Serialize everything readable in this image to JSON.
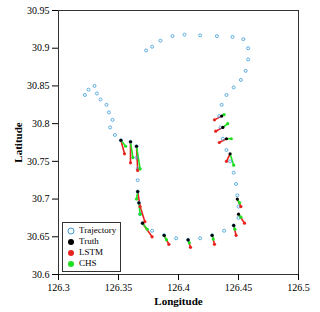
{
  "chart_data": {
    "type": "scatter",
    "xlabel": "Longitude",
    "ylabel": "Latitude",
    "xlim": [
      126.3,
      126.5
    ],
    "xticks": [
      126.3,
      126.35,
      126.4,
      126.45,
      126.5
    ],
    "ylim": [
      30.6,
      30.95
    ],
    "yticks": [
      30.6,
      30.65,
      30.7,
      30.75,
      30.8,
      30.85,
      30.9,
      30.95
    ],
    "grid": false,
    "legend": "lower left",
    "series": [
      {
        "name": "Trajectory",
        "color": "#3a9ad9",
        "marker": "o",
        "line_style": "none",
        "x": [
          126.322,
          126.325,
          126.33,
          126.332,
          126.335,
          126.34,
          126.342,
          126.345,
          126.343,
          126.347,
          126.352,
          126.36,
          126.365,
          126.365,
          126.366,
          126.366,
          126.366,
          126.367,
          126.368,
          126.37,
          126.378,
          126.388,
          126.398,
          126.408,
          126.418,
          126.428,
          126.438,
          126.446,
          126.45,
          126.45,
          126.449,
          126.448,
          126.446,
          126.443,
          126.44,
          126.437,
          126.435,
          126.434,
          126.436,
          126.44,
          126.446,
          126.452,
          126.456,
          126.458,
          126.458,
          126.454,
          126.445,
          126.432,
          126.418,
          126.405,
          126.395,
          126.385,
          126.378,
          126.373
        ],
        "y": [
          30.838,
          30.845,
          30.85,
          30.84,
          30.832,
          30.825,
          30.815,
          30.805,
          30.795,
          30.785,
          30.778,
          30.776,
          30.77,
          30.755,
          30.74,
          30.725,
          30.71,
          30.695,
          30.68,
          30.668,
          30.658,
          30.652,
          30.648,
          30.646,
          30.648,
          30.652,
          30.658,
          30.665,
          30.675,
          30.69,
          30.705,
          30.72,
          30.735,
          30.75,
          30.765,
          30.78,
          30.795,
          30.81,
          30.825,
          30.838,
          30.848,
          30.858,
          30.87,
          30.885,
          30.9,
          30.912,
          30.915,
          30.916,
          30.917,
          30.918,
          30.916,
          30.91,
          30.902,
          30.897
        ]
      },
      {
        "name": "Truth",
        "color": "#000000",
        "marker": ".",
        "line_style": "none",
        "x": [
          126.352,
          126.36,
          126.365,
          126.436,
          126.437,
          126.44,
          126.443,
          126.366,
          126.367,
          126.37,
          126.388,
          126.408,
          126.428,
          126.446,
          126.45,
          126.449
        ],
        "y": [
          30.778,
          30.776,
          30.77,
          30.81,
          30.795,
          30.78,
          30.76,
          30.71,
          30.695,
          30.668,
          30.652,
          30.646,
          30.652,
          30.665,
          30.68,
          30.7
        ]
      },
      {
        "name": "LSTM",
        "color": "#e8231f",
        "marker": ".",
        "line_style": "solid",
        "x": [
          126.355,
          126.36,
          126.366,
          126.43,
          126.431,
          126.434,
          126.44,
          126.368,
          126.372,
          126.378,
          126.392,
          126.41,
          126.43,
          126.448,
          126.455,
          126.452
        ],
        "y": [
          30.76,
          30.748,
          30.738,
          30.805,
          30.79,
          30.775,
          30.75,
          30.69,
          30.67,
          30.65,
          30.64,
          30.636,
          30.64,
          30.652,
          30.668,
          30.69
        ]
      },
      {
        "name": "CHS",
        "color": "#1fe01f",
        "marker": ".",
        "line_style": "solid",
        "x": [
          126.356,
          126.362,
          126.368,
          126.438,
          126.441,
          126.444,
          126.446,
          126.365,
          126.368,
          126.374,
          126.39,
          126.409,
          126.429,
          126.447,
          126.452,
          126.451
        ],
        "y": [
          30.77,
          30.755,
          30.74,
          30.812,
          30.8,
          30.78,
          30.745,
          30.7,
          30.68,
          30.66,
          30.646,
          30.642,
          30.647,
          30.66,
          30.676,
          30.695
        ]
      }
    ]
  }
}
